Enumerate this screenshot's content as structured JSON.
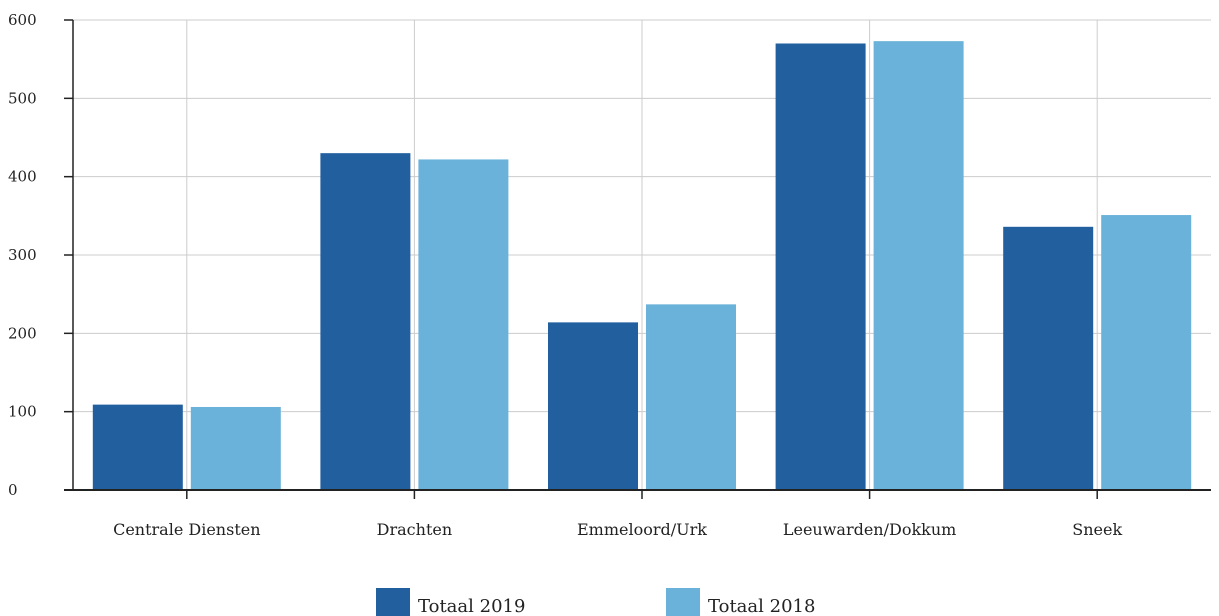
{
  "chart_data": {
    "type": "bar",
    "categories": [
      "Centrale Diensten",
      "Drachten",
      "Emmeloord/Urk",
      "Leeuwarden/Dokkum",
      "Sneek"
    ],
    "series": [
      {
        "name": "Totaal 2019",
        "values": [
          109,
          430,
          214,
          570,
          336
        ],
        "color": "#215f9f"
      },
      {
        "name": "Totaal 2018",
        "values": [
          106,
          422,
          237,
          573,
          351
        ],
        "color": "#6ab2d9"
      }
    ],
    "title": "",
    "xlabel": "",
    "ylabel": "",
    "ylim": [
      0,
      600
    ],
    "yticks": [
      0,
      100,
      200,
      300,
      400,
      500,
      600
    ],
    "grid": true,
    "legend_position": "bottom-center"
  }
}
